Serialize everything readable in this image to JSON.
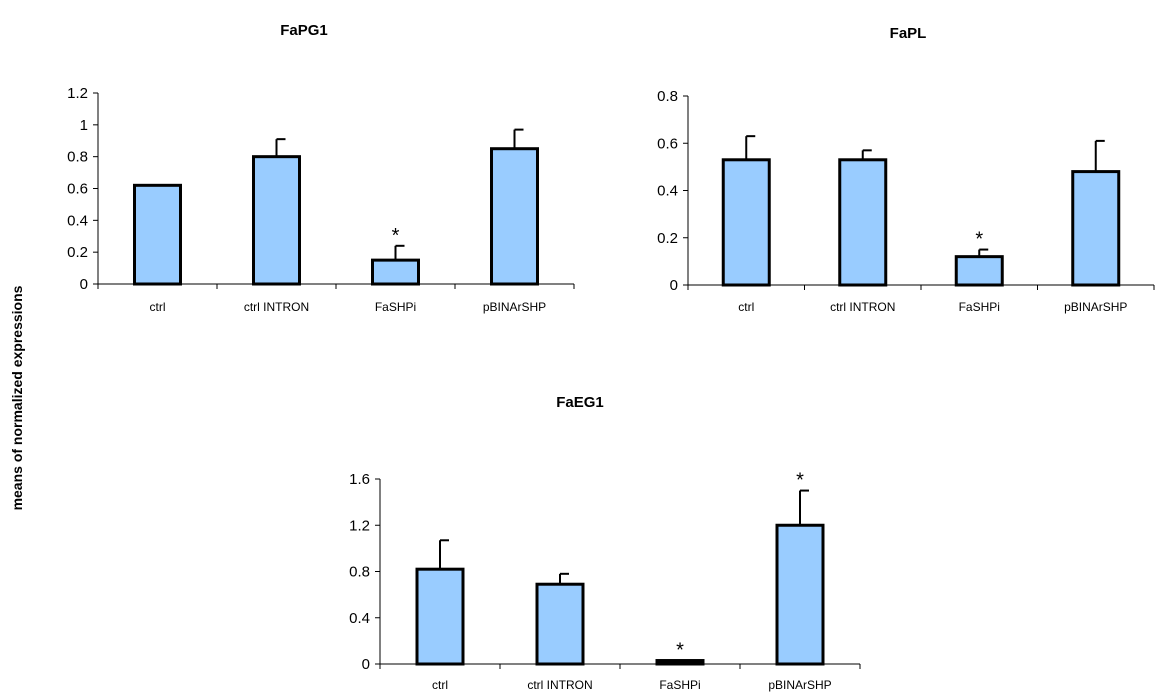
{
  "figure": {
    "ylabel": "means of normalized expressions",
    "star_symbol": "*",
    "bar_color": "#99CCFF",
    "outline_color": "#000000"
  },
  "chart_data": [
    {
      "type": "bar",
      "title": "FaPG1",
      "categories": [
        "ctrl",
        "ctrl INTRON",
        "FaSHPi",
        "pBINArSHP"
      ],
      "values": [
        0.62,
        0.8,
        0.15,
        0.85
      ],
      "errors": [
        0.0,
        0.11,
        0.09,
        0.12
      ],
      "significant": [
        false,
        false,
        true,
        false
      ],
      "ylim": [
        0,
        1.2
      ],
      "yticks": [
        "0",
        "0.2",
        "0.4",
        "0.6",
        "0.8",
        "1",
        "1.2"
      ],
      "ytick_values": [
        0,
        0.2,
        0.4,
        0.6,
        0.8,
        1.0,
        1.2
      ]
    },
    {
      "type": "bar",
      "title": "FaPL",
      "categories": [
        "ctrl",
        "ctrl INTRON",
        "FaSHPi",
        "pBINArSHP"
      ],
      "values": [
        0.53,
        0.53,
        0.12,
        0.48
      ],
      "errors": [
        0.1,
        0.04,
        0.03,
        0.13
      ],
      "significant": [
        false,
        false,
        true,
        false
      ],
      "ylim": [
        0,
        0.8
      ],
      "yticks": [
        "0",
        "0.2",
        "0.4",
        "0.6",
        "0.8"
      ],
      "ytick_values": [
        0,
        0.2,
        0.4,
        0.6,
        0.8
      ]
    },
    {
      "type": "bar",
      "title": "FaEG1",
      "categories": [
        "ctrl",
        "ctrl INTRON",
        "FaSHPi",
        "pBINArSHP"
      ],
      "values": [
        0.82,
        0.69,
        0.03,
        1.2
      ],
      "errors": [
        0.25,
        0.09,
        0.0,
        0.3
      ],
      "significant": [
        false,
        false,
        true,
        true
      ],
      "ylim": [
        0,
        1.6
      ],
      "yticks": [
        "0",
        "0.4",
        "0.8",
        "1.2",
        "1.6"
      ],
      "ytick_values": [
        0,
        0.4,
        0.8,
        1.2,
        1.6
      ]
    }
  ]
}
